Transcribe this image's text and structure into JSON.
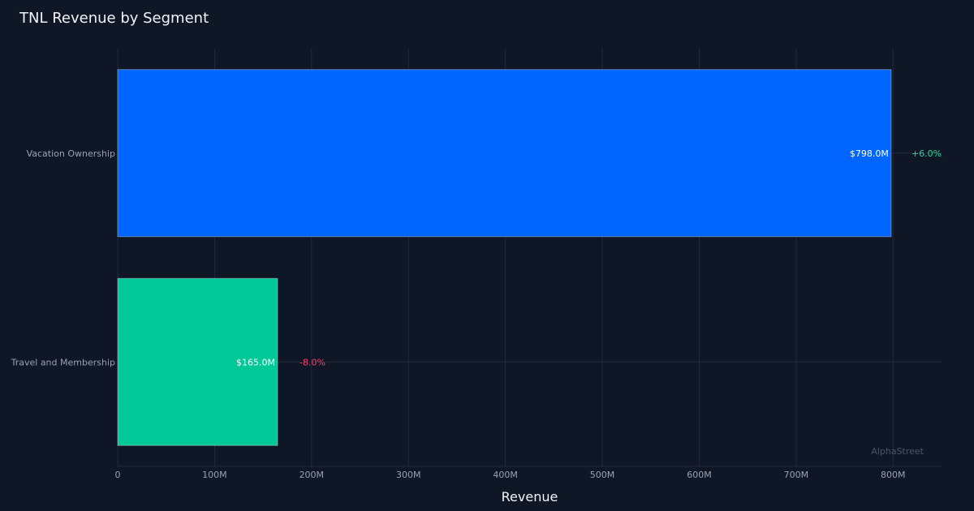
{
  "chart_data": {
    "type": "bar",
    "orientation": "horizontal",
    "title": "TNL Revenue by Segment",
    "xlabel": "Revenue",
    "ylabel": "",
    "categories": [
      "Vacation Ownership",
      "Travel and Membership"
    ],
    "values": [
      798000000,
      165000000
    ],
    "value_labels": [
      "$798.0M",
      "$165.0M"
    ],
    "change_labels": [
      "+6.0%",
      "-8.0%"
    ],
    "change_directions": [
      "up",
      "down"
    ],
    "bar_colors": [
      "#0066ff",
      "#00c896"
    ],
    "change_colors": {
      "up": "#2bd49a",
      "down": "#ff3b6b"
    },
    "xlim": [
      0,
      850000000
    ],
    "x_ticks": [
      0,
      100000000,
      200000000,
      300000000,
      400000000,
      500000000,
      600000000,
      700000000,
      800000000
    ],
    "x_tick_labels": [
      "0",
      "100M",
      "200M",
      "300M",
      "400M",
      "500M",
      "600M",
      "700M",
      "800M"
    ],
    "grid": true,
    "legend": "none"
  },
  "watermark": "AlphaStreet",
  "colors": {
    "background": "#0f1626",
    "grid": "#1f2a3c",
    "text_primary": "#f2f4f8",
    "text_secondary": "#9aa3b2",
    "watermark": "#4a5568"
  }
}
